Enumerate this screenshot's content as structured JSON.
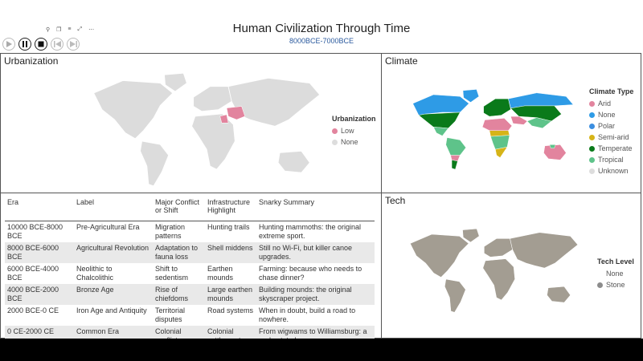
{
  "header": {
    "title": "Human Civilization Through Time",
    "subtitle": "8000BCE-7000BCE"
  },
  "controls": [
    {
      "name": "play-button",
      "icon": "play-icon"
    },
    {
      "name": "pause-button",
      "icon": "pause-icon"
    },
    {
      "name": "stop-button",
      "icon": "stop-icon"
    },
    {
      "name": "previous-button",
      "icon": "skip-back-icon"
    },
    {
      "name": "next-button",
      "icon": "skip-forward-icon"
    }
  ],
  "urbanization": {
    "title": "Urbanization",
    "legend_title": "Urbanization",
    "items": [
      {
        "label": "Low",
        "color": "#e2849e"
      },
      {
        "label": "None",
        "color": "#dddddd"
      }
    ]
  },
  "climate": {
    "title": "Climate",
    "legend_title": "Climate Type",
    "items": [
      {
        "label": "Arid",
        "color": "#e2849e"
      },
      {
        "label": "None",
        "color": "#2e9be6"
      },
      {
        "label": "Polar",
        "color": "#3b8ee0"
      },
      {
        "label": "Semi-arid",
        "color": "#d6b418"
      },
      {
        "label": "Temperate",
        "color": "#0a7a1a"
      },
      {
        "label": "Tropical",
        "color": "#5ec38a"
      },
      {
        "label": "Unknown",
        "color": "#dddddd"
      }
    ]
  },
  "tech": {
    "title": "Tech",
    "legend_title": "Tech Level",
    "items": [
      {
        "label": "None",
        "color": "#ffffff"
      },
      {
        "label": "Stone",
        "color": "#8c8c8c"
      }
    ]
  },
  "table": {
    "headers": [
      "Era",
      "Label",
      "Major Conflict or Shift",
      "Infrastructure Highlight",
      "Snarky Summary"
    ],
    "rows": [
      [
        "10000 BCE-8000 BCE",
        "Pre-Agricultural Era",
        "Migration patterns",
        "Hunting trails",
        "Hunting mammoths: the original extreme sport."
      ],
      [
        "8000 BCE-6000 BCE",
        "Agricultural Revolution",
        "Adaptation to fauna loss",
        "Shell middens",
        "Still no Wi-Fi, but killer canoe upgrades."
      ],
      [
        "6000 BCE-4000 BCE",
        "Neolithic to Chalcolithic",
        "Shift to sedentism",
        "Earthen mounds",
        "Farming: because who needs to chase dinner?"
      ],
      [
        "4000 BCE-2000 BCE",
        "Bronze Age",
        "Rise of chiefdoms",
        "Large earthen mounds",
        "Building mounds: the original skyscraper project."
      ],
      [
        "2000 BCE-0 CE",
        "Iron Age and Antiquity",
        "Territorial disputes",
        "Road systems",
        "When in doubt, build a road to nowhere."
      ],
      [
        "0 CE-2000 CE",
        "Common Era",
        "Colonial conflicts",
        "Colonial settlements",
        "From wigwams to Williamsburg: a real estate boom."
      ]
    ]
  }
}
